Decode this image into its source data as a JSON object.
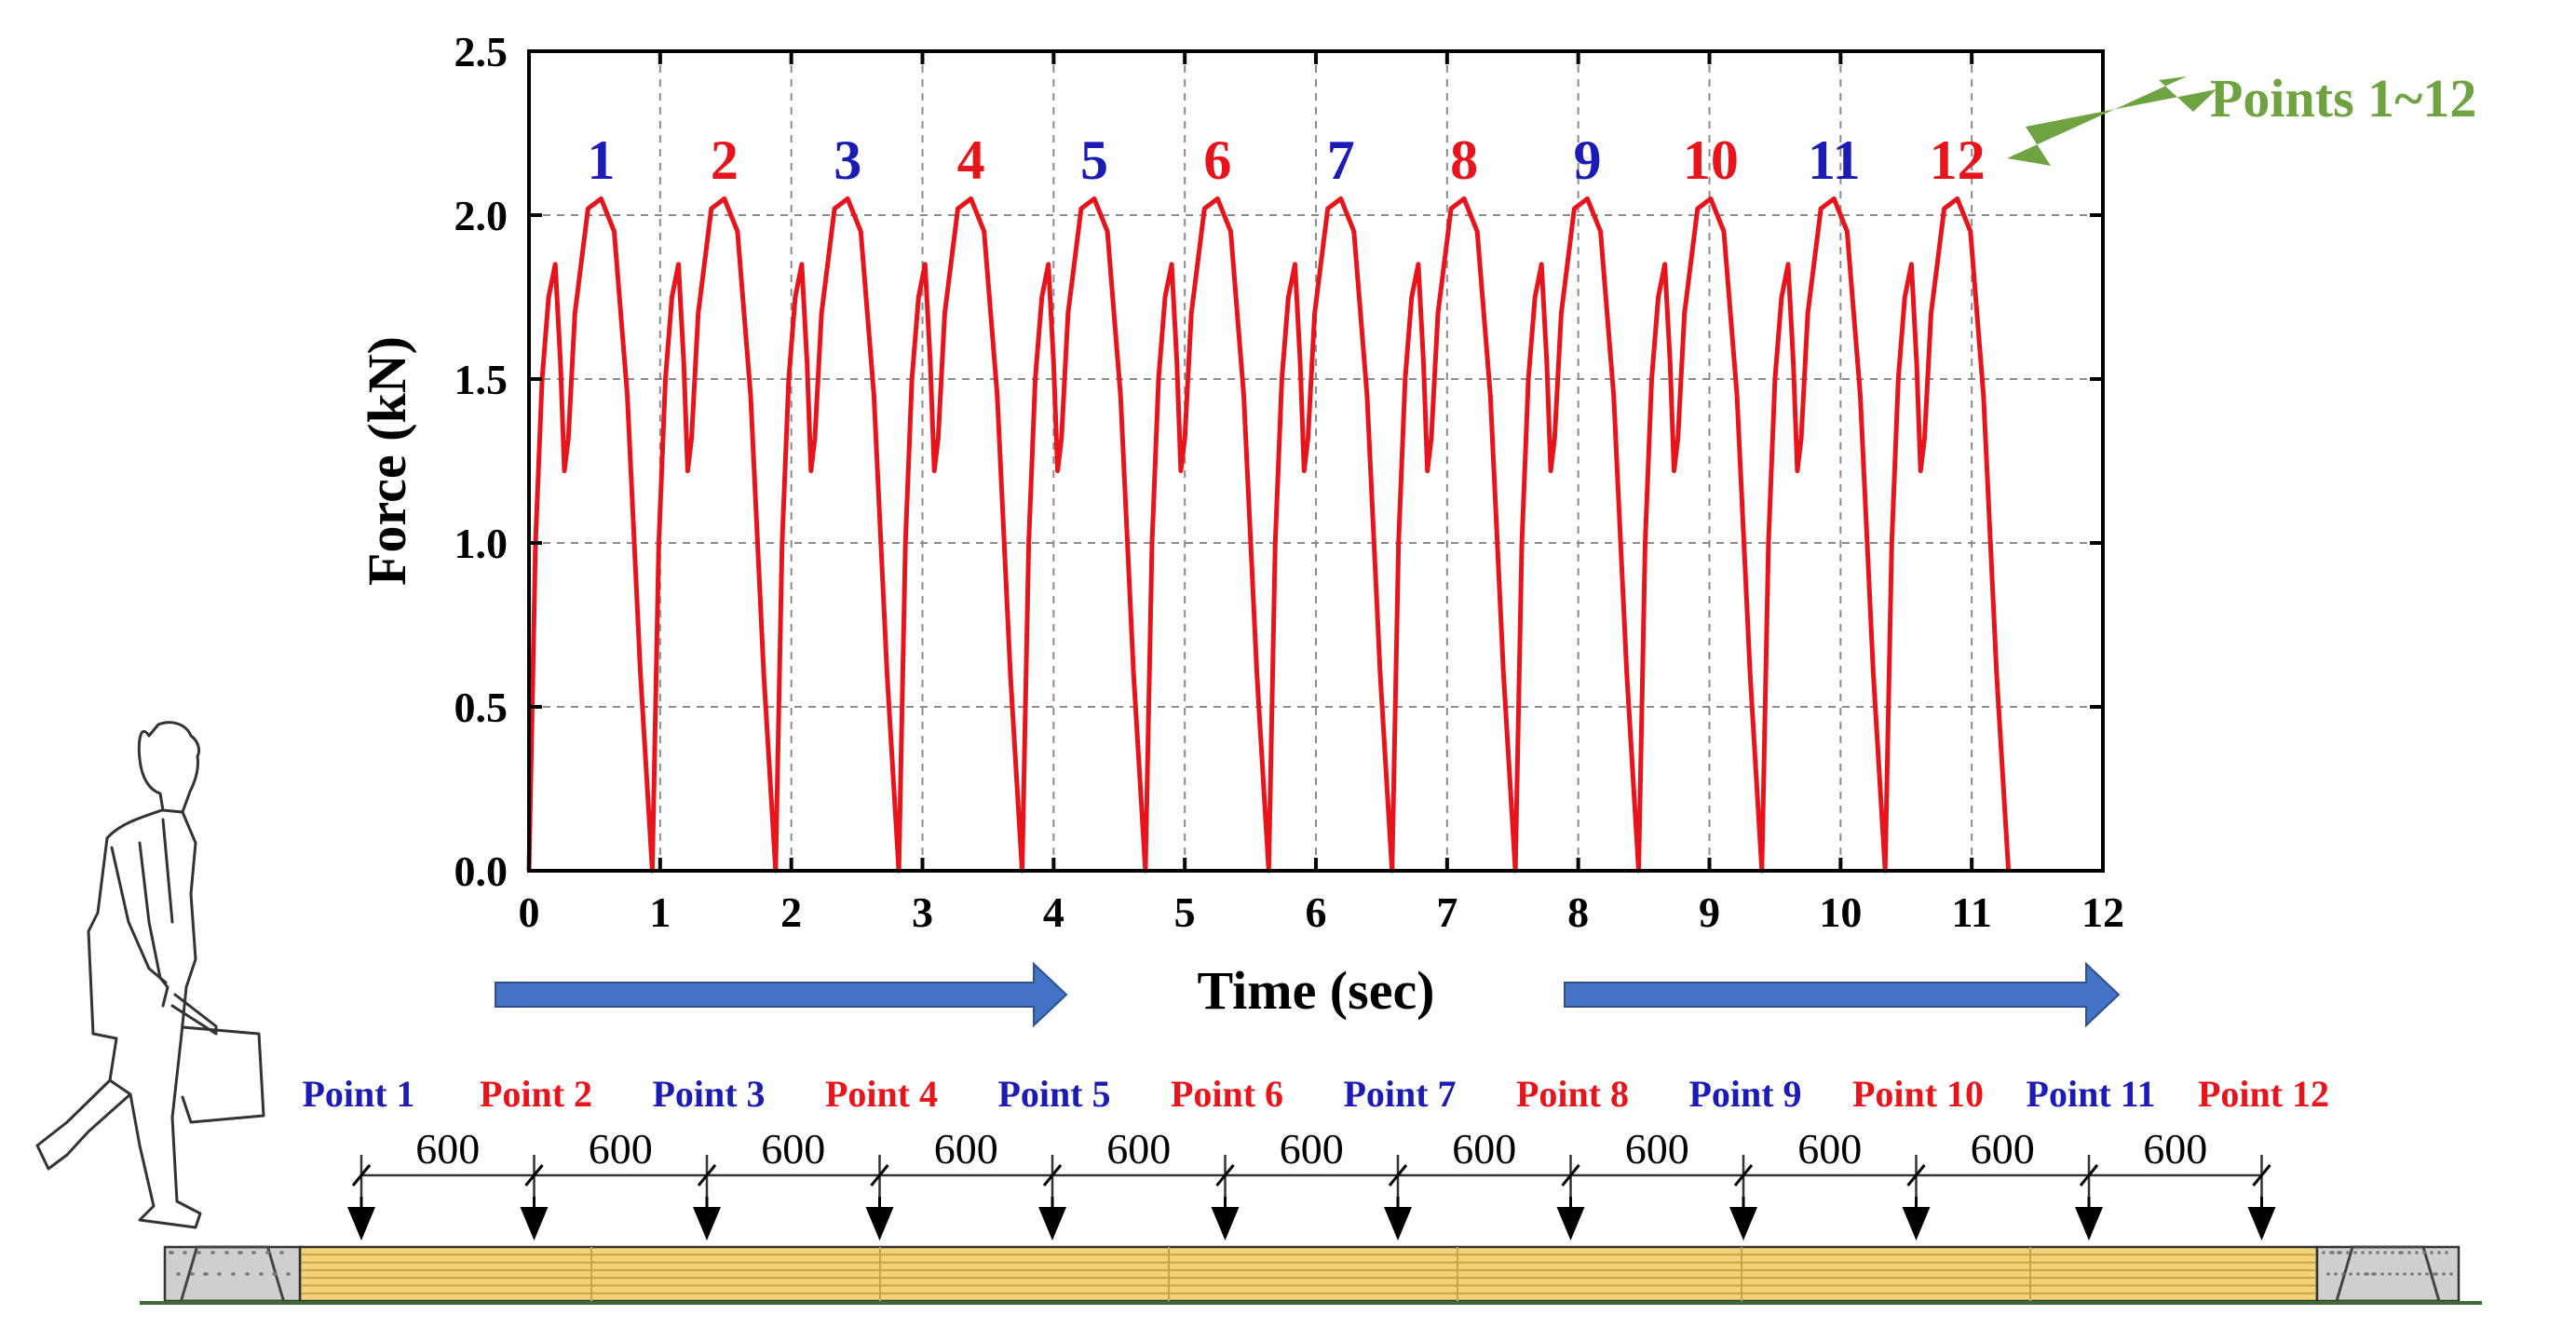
{
  "colors": {
    "red": "#e8141c",
    "blue": "#1c1cb4",
    "green": "#6fa341",
    "arrow_blue": "#4472c4",
    "arrow_blue_edge": "#2f528f",
    "wood": "#f3d27a",
    "wood_line": "#c9a347",
    "concrete": "#cfcfcf",
    "ground": "#3d6b34"
  },
  "chart_data": {
    "type": "line",
    "xlabel": "Time (sec)",
    "ylabel": "Force (kN)",
    "xlim": [
      0,
      12
    ],
    "ylim": [
      0,
      2.5
    ],
    "x_ticks": [
      "0",
      "1",
      "2",
      "3",
      "4",
      "5",
      "6",
      "7",
      "8",
      "9",
      "10",
      "11",
      "12"
    ],
    "y_ticks": [
      "0.0",
      "0.5",
      "1.0",
      "1.5",
      "2.0",
      "2.5"
    ],
    "grid": true,
    "step_period_sec": 0.94,
    "num_steps": 12,
    "step_profile": {
      "t": [
        0,
        0.05,
        0.1,
        0.15,
        0.2,
        0.24,
        0.27,
        0.3,
        0.35,
        0.45,
        0.55,
        0.65,
        0.75,
        0.85,
        0.94
      ],
      "force": [
        0,
        1.0,
        1.5,
        1.75,
        1.85,
        1.55,
        1.22,
        1.32,
        1.7,
        2.02,
        2.05,
        1.95,
        1.45,
        0.6,
        0
      ]
    },
    "series": [
      {
        "peak_labels": [
          "1",
          "2",
          "3",
          "4",
          "5",
          "6",
          "7",
          "8",
          "9",
          "10",
          "11",
          "12"
        ],
        "peak_times": [
          0.55,
          1.49,
          2.43,
          3.37,
          4.31,
          5.25,
          6.19,
          7.13,
          8.07,
          9.01,
          9.95,
          10.89
        ],
        "peak_value": 2.05
      }
    ],
    "annotation": "Points 1~12"
  },
  "diagram": {
    "points": [
      "Point 1",
      "Point 2",
      "Point 3",
      "Point 4",
      "Point 5",
      "Point 6",
      "Point 7",
      "Point 8",
      "Point 9",
      "Point 10",
      "Point 11",
      "Point 12"
    ],
    "spacing_label": "600",
    "spacing_count": 11
  }
}
